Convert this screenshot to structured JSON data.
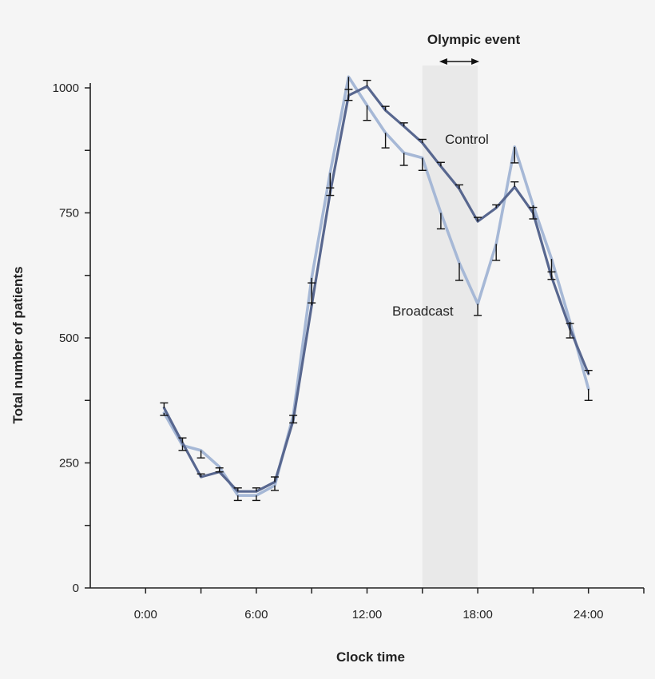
{
  "chart_data": {
    "type": "line",
    "xlabel": "Clock time",
    "ylabel": "Total number of patients",
    "xlim": [
      -3,
      27
    ],
    "ylim": [
      0,
      1000
    ],
    "x_ticks": [
      0,
      6,
      12,
      18,
      24
    ],
    "x_tick_labels": [
      "0:00",
      "6:00",
      "12:00",
      "18:00",
      "24:00"
    ],
    "x_minor_ticks": [
      3,
      9,
      15,
      21,
      27
    ],
    "y_ticks": [
      0,
      250,
      500,
      750,
      1000
    ],
    "y_tick_labels": [
      "0",
      "250",
      "500",
      "750",
      "1000"
    ],
    "y_minor_ticks": [
      125,
      375,
      625,
      875
    ],
    "grid": false,
    "x": [
      1,
      2,
      3,
      4,
      5,
      6,
      7,
      8,
      9,
      10,
      11,
      12,
      13,
      14,
      15,
      16,
      17,
      18,
      19,
      20,
      21,
      22,
      23,
      24
    ],
    "series": [
      {
        "name": "Control",
        "color": "#58678f",
        "values": [
          360,
          290,
          222,
          232,
          193,
          193,
          212,
          335,
          565,
          790,
          985,
          1003,
          955,
          923,
          890,
          843,
          798,
          733,
          760,
          802,
          750,
          622,
          518,
          428
        ],
        "err_upper": [
          370,
          300,
          228,
          240,
          200,
          200,
          222,
          345,
          610,
          800,
          997,
          1015,
          963,
          930,
          897,
          851,
          806,
          741,
          766,
          812,
          761,
          632,
          529,
          435
        ]
      },
      {
        "name": "Broadcast",
        "color": "#a6b8d6",
        "values": [
          350,
          285,
          275,
          242,
          185,
          185,
          205,
          345,
          620,
          830,
          1022,
          965,
          910,
          870,
          860,
          750,
          650,
          568,
          688,
          882,
          765,
          658,
          532,
          398
        ],
        "err_lower": [
          345,
          275,
          260,
          232,
          175,
          175,
          195,
          330,
          570,
          785,
          975,
          935,
          880,
          845,
          835,
          718,
          615,
          545,
          655,
          850,
          738,
          617,
          500,
          375
        ]
      }
    ],
    "annotations": [
      {
        "text": "Olympic event",
        "x_range": [
          16,
          18
        ]
      },
      {
        "text": "Control"
      },
      {
        "text": "Broadcast"
      }
    ],
    "shaded_region": {
      "x": [
        15,
        18
      ],
      "color": "#e9e9e9"
    }
  }
}
